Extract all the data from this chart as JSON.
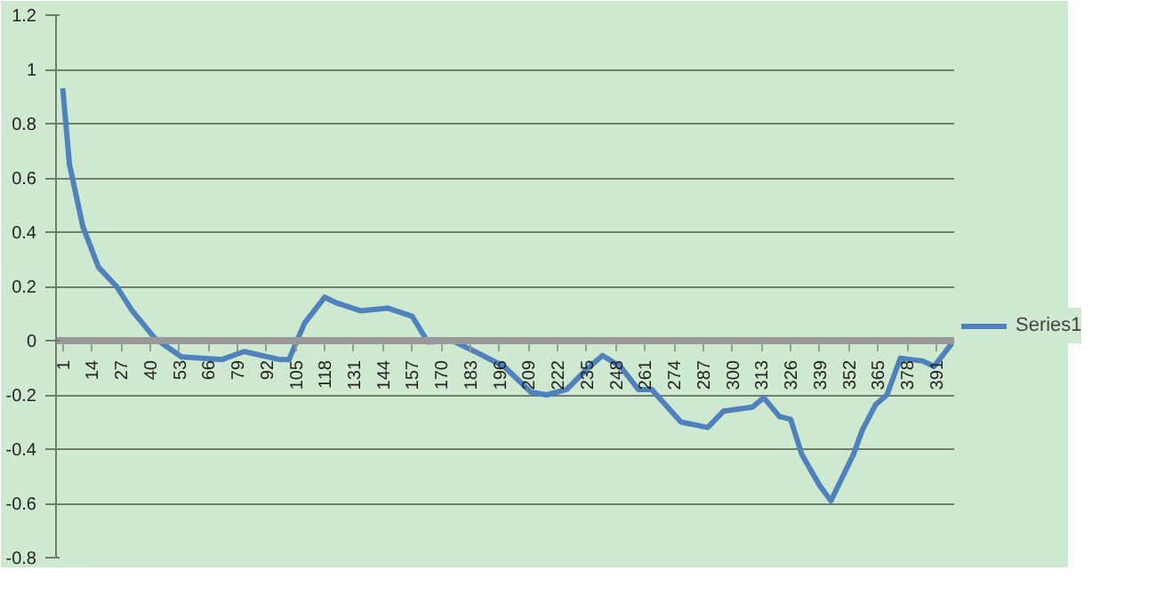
{
  "chart_data": {
    "type": "line",
    "xlim": [
      -2,
      399
    ],
    "xticks": [
      1,
      14,
      27,
      40,
      53,
      66,
      79,
      92,
      105,
      118,
      131,
      144,
      157,
      170,
      183,
      196,
      209,
      222,
      235,
      248,
      261,
      274,
      287,
      300,
      313,
      326,
      339,
      352,
      365,
      378,
      391
    ],
    "ylim": [
      -0.8,
      1.2
    ],
    "yticks": [
      -0.8,
      -0.6,
      -0.4,
      -0.2,
      0,
      0.2,
      0.4,
      0.6,
      0.8,
      1,
      1.2
    ],
    "grid": "y",
    "legend": "right",
    "marker": "none",
    "line_style": "solid",
    "series": [
      {
        "name": "Series1",
        "color": "#4f81bd",
        "x": [
          1,
          4,
          10,
          17,
          25,
          32,
          42,
          54,
          72,
          82,
          98,
          102,
          109,
          118,
          123,
          134,
          146,
          157,
          164,
          175,
          185,
          198,
          210,
          217,
          226,
          235,
          242,
          250,
          258,
          264,
          277,
          289,
          296,
          309,
          314,
          321,
          326,
          331,
          339,
          344,
          354,
          358,
          364,
          369,
          375,
          385,
          390,
          398
        ],
        "values": [
          0.93,
          0.65,
          0.42,
          0.27,
          0.2,
          0.11,
          0.01,
          -0.06,
          -0.07,
          -0.04,
          -0.07,
          -0.07,
          0.065,
          0.16,
          0.14,
          0.11,
          0.12,
          0.09,
          -0.005,
          0.0,
          -0.04,
          -0.095,
          -0.19,
          -0.2,
          -0.18,
          -0.105,
          -0.055,
          -0.095,
          -0.18,
          -0.18,
          -0.3,
          -0.32,
          -0.26,
          -0.245,
          -0.21,
          -0.28,
          -0.29,
          -0.42,
          -0.535,
          -0.59,
          -0.42,
          -0.33,
          -0.235,
          -0.2,
          -0.065,
          -0.075,
          -0.095,
          -0.01
        ]
      }
    ]
  }
}
